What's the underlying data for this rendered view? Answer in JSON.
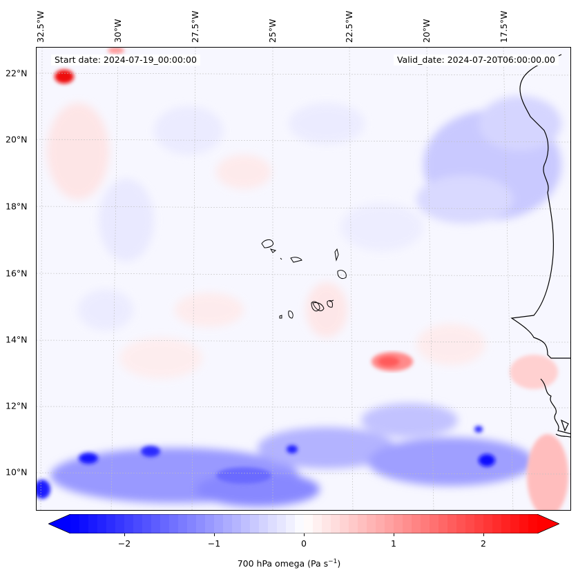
{
  "map": {
    "start_date": "Start date: 2024-07-19_00:00:00",
    "valid_date": "Valid_date: 2024-07-20T06:00:00.00",
    "lon_ticks": [
      "32.5°W",
      "30°W",
      "27.5°W",
      "25°W",
      "22.5°W",
      "20°W",
      "17.5°W"
    ],
    "lat_ticks": [
      "22°N",
      "20°N",
      "18°N",
      "16°N",
      "14°N",
      "12°N",
      "10°N"
    ],
    "gridlines": "dashed",
    "coastline_color": "#000000"
  },
  "colorbar": {
    "label_prefix": "700 hPa omega (Pa s",
    "label_sup": "−1",
    "label_suffix": ")",
    "ticks": [
      "−2",
      "−1",
      "0",
      "1",
      "2"
    ],
    "tick_values": [
      -2,
      -1,
      0,
      1,
      2
    ],
    "range": [
      -2.6,
      2.6
    ],
    "colormap": "bwr",
    "low_color": "#0000ff",
    "mid_color": "#ffffff",
    "high_color": "#ff0000",
    "extend": "both"
  }
}
